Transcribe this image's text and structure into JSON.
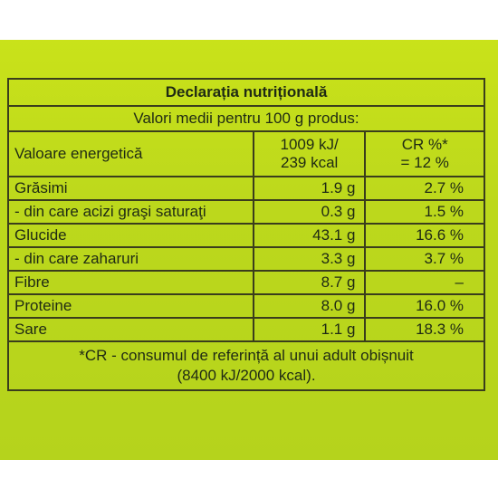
{
  "table": {
    "title": "Declarația nutrițională",
    "subtitle": "Valori medii pentru 100 g produs:",
    "energy": {
      "name": "Valoare energetică",
      "value_line1": "1009 kJ/",
      "value_line2": "239 kcal",
      "cr_line1": "CR %*",
      "cr_line2": "= 12 %"
    },
    "rows": [
      {
        "name": "Grăsimi",
        "value": "1.9 g",
        "cr": "2.7 %"
      },
      {
        "name": "- din care acizi graşi saturaţi",
        "value": "0.3 g",
        "cr": "1.5 %"
      },
      {
        "name": "Glucide",
        "value": "43.1 g",
        "cr": "16.6 %"
      },
      {
        "name": "- din care zaharuri",
        "value": "3.3 g",
        "cr": "3.7 %"
      },
      {
        "name": "Fibre",
        "value": "8.7 g",
        "cr": "–"
      },
      {
        "name": "Proteine",
        "value": "8.0 g",
        "cr": "16.0 %"
      },
      {
        "name": "Sare",
        "value": "1.1 g",
        "cr": "18.3 %"
      }
    ],
    "footnote_line1": "*CR - consumul de referință al unui adult obișnuit",
    "footnote_line2": "(8400 kJ/2000 kcal)."
  },
  "colors": {
    "packaging_background": "#bcd81c",
    "text": "#1f2a14",
    "border": "#3a3d1c"
  }
}
